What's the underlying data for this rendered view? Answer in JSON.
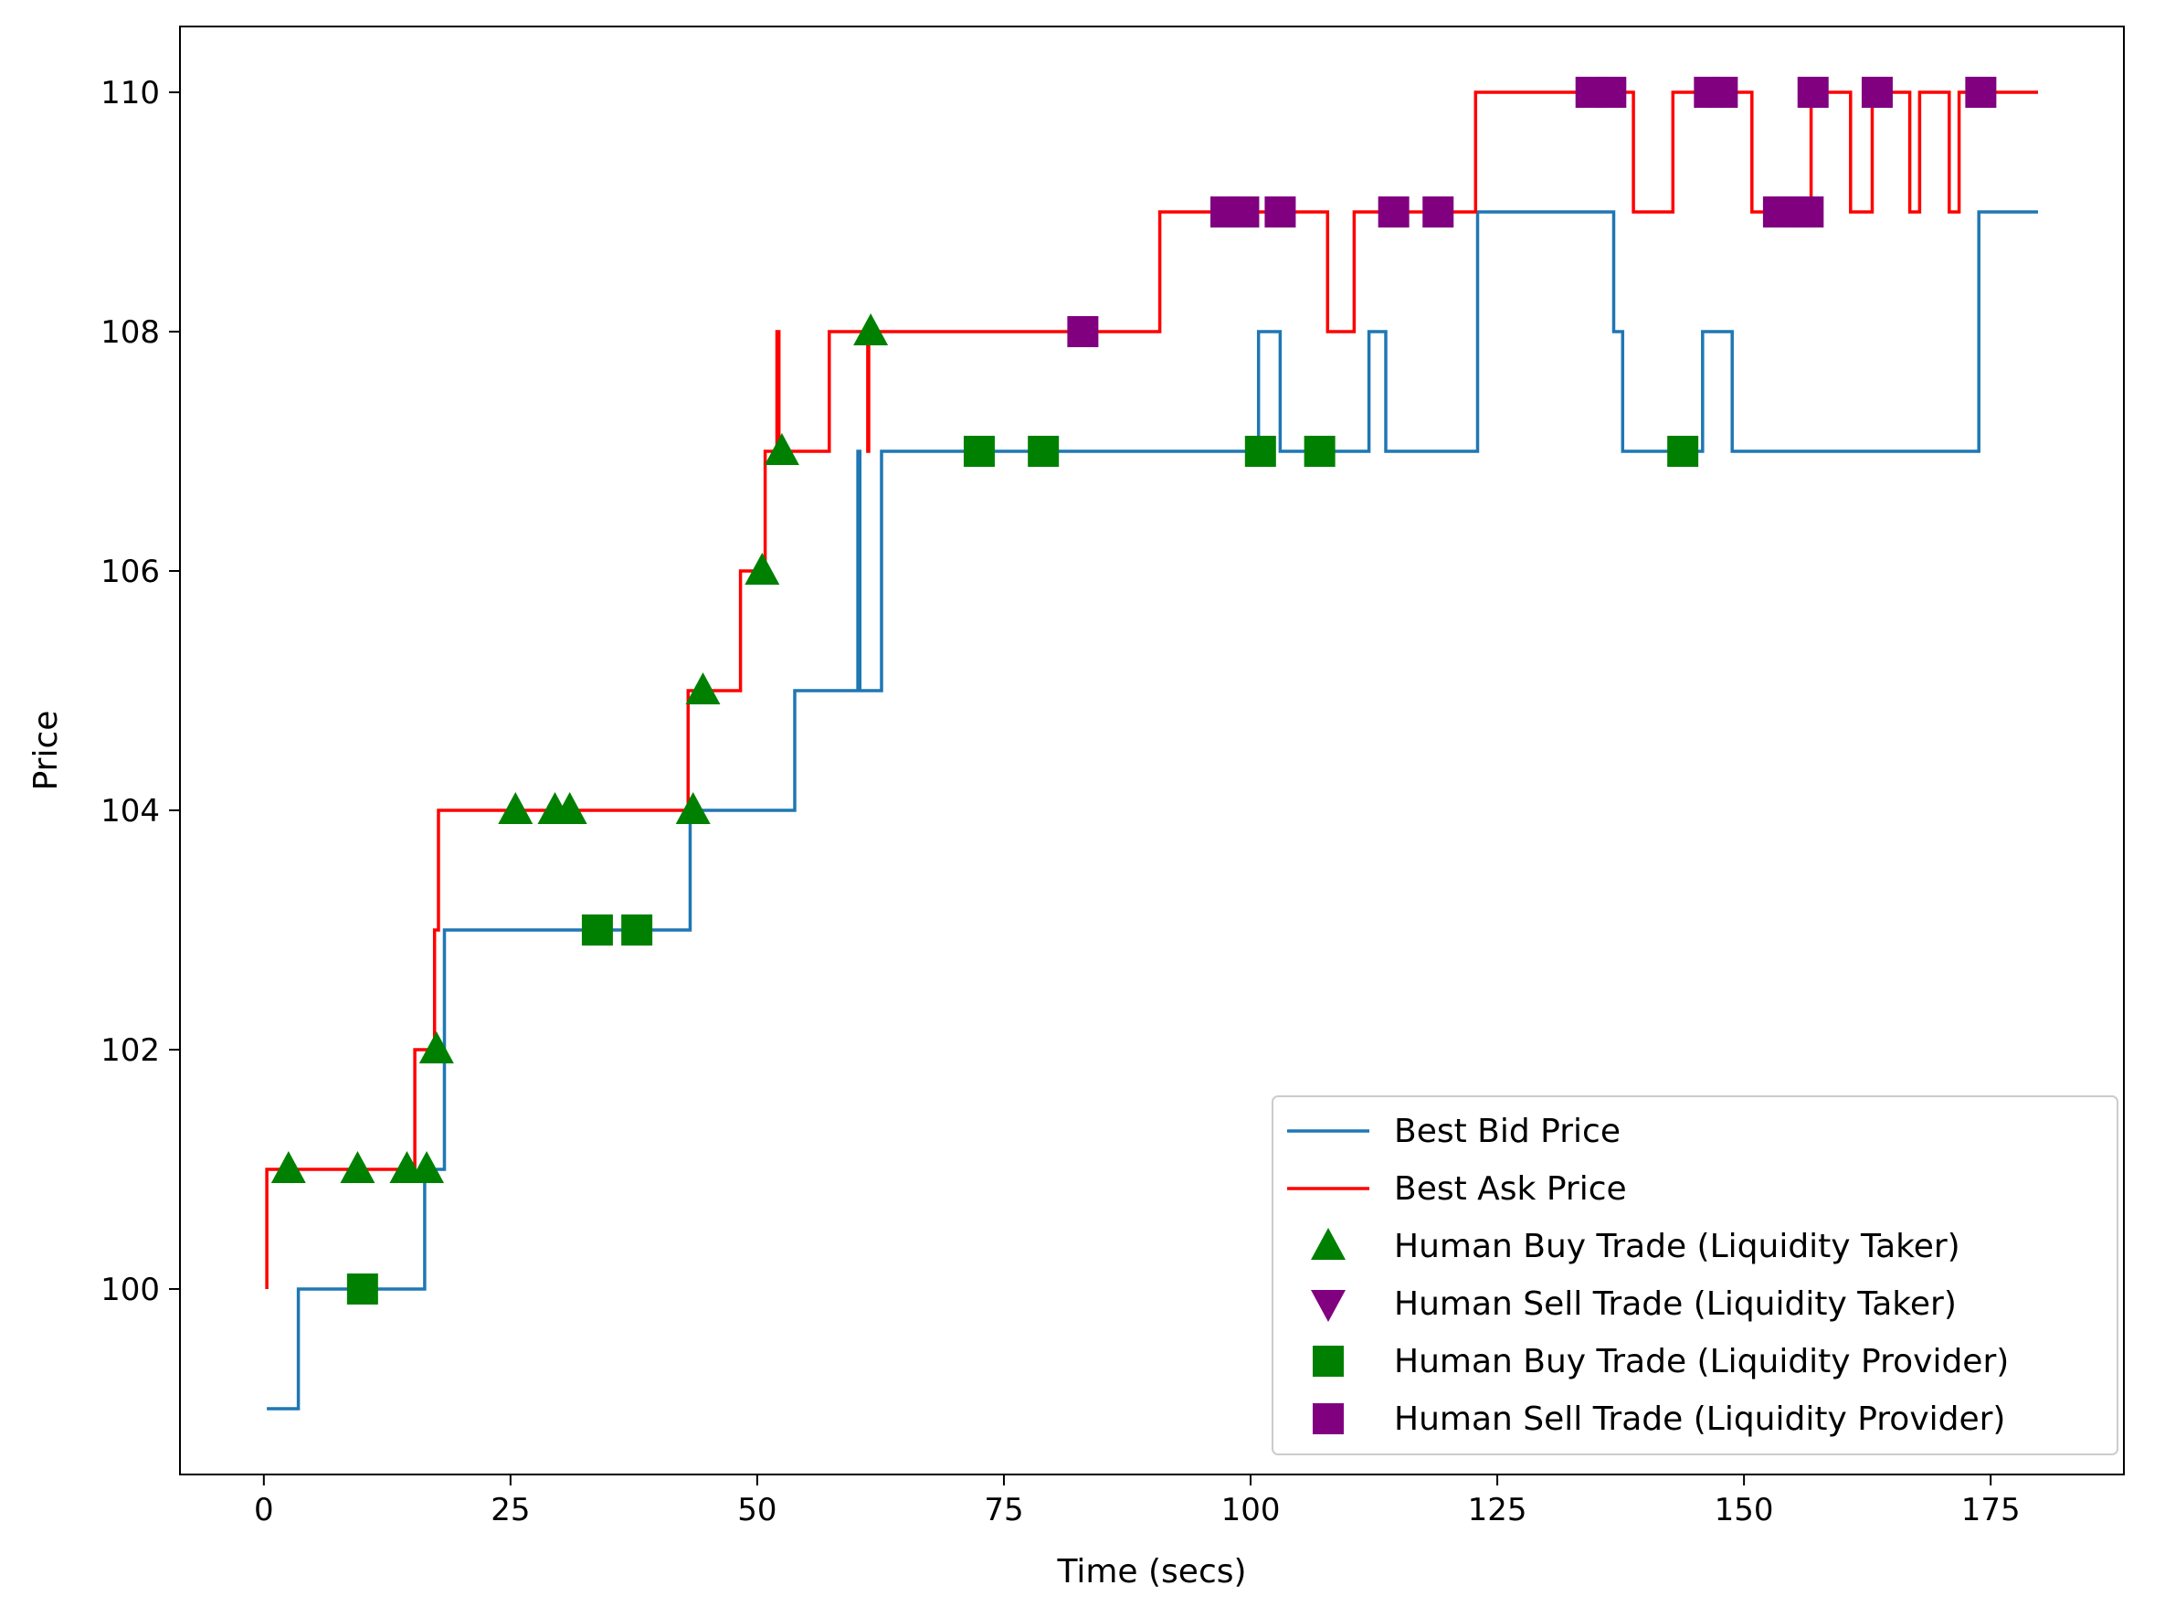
{
  "chart_data": {
    "type": "line",
    "title": "",
    "xlabel": "Time (secs)",
    "ylabel": "Price",
    "xlim": [
      -8.5,
      188.5
    ],
    "ylim": [
      98.45,
      110.55
    ],
    "xticks": [
      0,
      25,
      50,
      75,
      100,
      125,
      150,
      175
    ],
    "yticks": [
      100,
      102,
      104,
      106,
      108,
      110
    ],
    "grid": false,
    "legend_position": "lower right",
    "series": [
      {
        "name": "Best Bid Price",
        "kind": "step",
        "color": "#1f77b4",
        "points": [
          [
            0.3,
            99
          ],
          [
            3.5,
            99
          ],
          [
            3.5,
            100
          ],
          [
            16.3,
            100
          ],
          [
            16.3,
            101
          ],
          [
            18.3,
            101
          ],
          [
            18.3,
            103
          ],
          [
            43.2,
            103
          ],
          [
            43.2,
            104
          ],
          [
            53.8,
            104
          ],
          [
            53.8,
            105
          ],
          [
            60.2,
            105
          ],
          [
            60.2,
            107
          ],
          [
            60.4,
            107
          ],
          [
            60.4,
            105
          ],
          [
            62.6,
            105
          ],
          [
            62.6,
            107
          ],
          [
            100.8,
            107
          ],
          [
            100.8,
            108
          ],
          [
            103.0,
            108
          ],
          [
            103.0,
            107
          ],
          [
            112.0,
            107
          ],
          [
            112.0,
            108
          ],
          [
            113.7,
            108
          ],
          [
            113.7,
            107
          ],
          [
            123.0,
            107
          ],
          [
            123.0,
            109
          ],
          [
            136.8,
            109
          ],
          [
            136.8,
            108
          ],
          [
            137.7,
            108
          ],
          [
            137.7,
            107
          ],
          [
            145.8,
            107
          ],
          [
            145.8,
            108
          ],
          [
            148.8,
            108
          ],
          [
            148.8,
            107
          ],
          [
            173.8,
            107
          ],
          [
            173.8,
            109
          ],
          [
            179.8,
            109
          ]
        ]
      },
      {
        "name": "Best Ask Price",
        "kind": "step",
        "color": "#ff0000",
        "points": [
          [
            0.3,
            100
          ],
          [
            0.3,
            101
          ],
          [
            15.3,
            101
          ],
          [
            15.3,
            102
          ],
          [
            17.3,
            102
          ],
          [
            17.3,
            103
          ],
          [
            17.7,
            103
          ],
          [
            17.7,
            104
          ],
          [
            43.0,
            104
          ],
          [
            43.0,
            105
          ],
          [
            48.3,
            105
          ],
          [
            48.3,
            106
          ],
          [
            50.8,
            106
          ],
          [
            50.8,
            107
          ],
          [
            52.0,
            107
          ],
          [
            52.0,
            108
          ],
          [
            52.2,
            108
          ],
          [
            52.2,
            107
          ],
          [
            57.3,
            107
          ],
          [
            57.3,
            108
          ],
          [
            61.2,
            108
          ],
          [
            61.2,
            107
          ],
          [
            61.3,
            107
          ],
          [
            61.3,
            108
          ],
          [
            90.8,
            108
          ],
          [
            90.8,
            109
          ],
          [
            107.8,
            109
          ],
          [
            107.8,
            108
          ],
          [
            110.5,
            108
          ],
          [
            110.5,
            109
          ],
          [
            122.8,
            109
          ],
          [
            122.8,
            110
          ],
          [
            138.8,
            110
          ],
          [
            138.8,
            109
          ],
          [
            142.8,
            109
          ],
          [
            142.8,
            110
          ],
          [
            150.8,
            110
          ],
          [
            150.8,
            109
          ],
          [
            156.8,
            109
          ],
          [
            156.8,
            110
          ],
          [
            160.8,
            110
          ],
          [
            160.8,
            109
          ],
          [
            163.0,
            109
          ],
          [
            163.0,
            110
          ],
          [
            166.8,
            110
          ],
          [
            166.8,
            109
          ],
          [
            167.8,
            109
          ],
          [
            167.8,
            110
          ],
          [
            170.8,
            110
          ],
          [
            170.8,
            109
          ],
          [
            171.8,
            109
          ],
          [
            171.8,
            110
          ],
          [
            179.8,
            110
          ]
        ]
      },
      {
        "name": "Human Buy Trade (Liquidity Taker)",
        "kind": "scatter",
        "marker": "triangle-up",
        "color": "#008000",
        "points": [
          [
            2.5,
            101
          ],
          [
            9.5,
            101
          ],
          [
            14.5,
            101
          ],
          [
            16.5,
            101
          ],
          [
            17.5,
            102
          ],
          [
            25.5,
            104
          ],
          [
            29.5,
            104
          ],
          [
            31.0,
            104
          ],
          [
            43.5,
            104
          ],
          [
            44.5,
            105
          ],
          [
            50.5,
            106
          ],
          [
            52.5,
            107
          ],
          [
            61.5,
            108
          ]
        ]
      },
      {
        "name": "Human Sell Trade (Liquidity Taker)",
        "kind": "scatter",
        "marker": "triangle-down",
        "color": "#800080",
        "points": []
      },
      {
        "name": "Human Buy Trade (Liquidity Provider)",
        "kind": "scatter",
        "marker": "square",
        "color": "#008000",
        "points": [
          [
            10.0,
            100
          ],
          [
            33.8,
            103
          ],
          [
            37.8,
            103
          ],
          [
            72.5,
            107
          ],
          [
            79.0,
            107
          ],
          [
            101.0,
            107
          ],
          [
            107.0,
            107
          ],
          [
            143.8,
            107
          ]
        ]
      },
      {
        "name": "Human Sell Trade (Liquidity Provider)",
        "kind": "scatter",
        "marker": "square",
        "color": "#800080",
        "points": [
          [
            83.0,
            108
          ],
          [
            97.5,
            109
          ],
          [
            99.3,
            109
          ],
          [
            103.0,
            109
          ],
          [
            114.5,
            109
          ],
          [
            119.0,
            109
          ],
          [
            134.5,
            110
          ],
          [
            136.5,
            110
          ],
          [
            146.5,
            110
          ],
          [
            147.8,
            110
          ],
          [
            157.0,
            110
          ],
          [
            163.5,
            110
          ],
          [
            174.0,
            110
          ],
          [
            153.5,
            109
          ],
          [
            155.0,
            109
          ],
          [
            156.5,
            109
          ]
        ]
      }
    ]
  }
}
